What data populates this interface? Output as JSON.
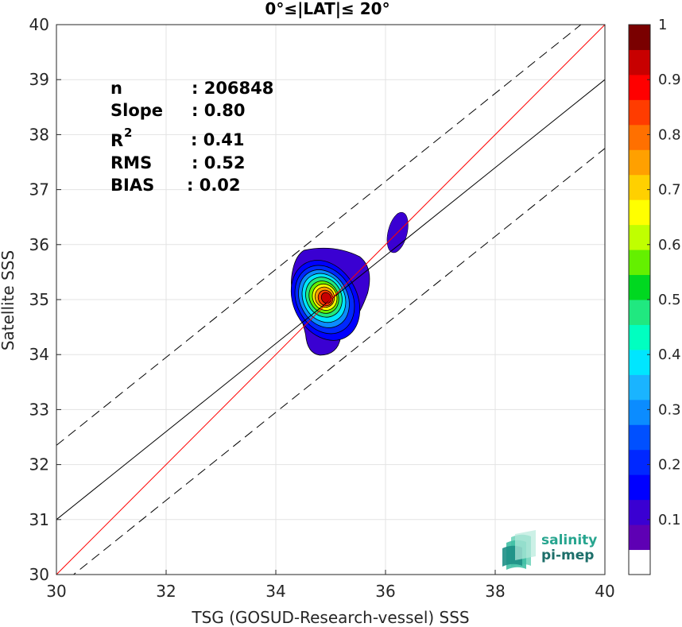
{
  "chart_data": {
    "type": "scatter",
    "title": "0°≤|LAT|≤ 20°",
    "xlabel": "TSG (GOSUD-Research-vessel) SSS",
    "ylabel": "Satellite SSS",
    "xlim": [
      30,
      40
    ],
    "ylim": [
      30,
      40
    ],
    "xticks": [
      "30",
      "32",
      "34",
      "36",
      "38",
      "40"
    ],
    "yticks": [
      "30",
      "31",
      "32",
      "33",
      "34",
      "35",
      "36",
      "37",
      "38",
      "39",
      "40"
    ],
    "grid": true,
    "stats": [
      {
        "label": "n",
        "value": ": 206848"
      },
      {
        "label": "Slope",
        "value": ": 0.80"
      },
      {
        "label": "R",
        "superscript": "2",
        "value": ": 0.41"
      },
      {
        "label": "RMS",
        "value": ": 0.52"
      },
      {
        "label": "BIAS",
        "value": ": 0.02"
      }
    ],
    "lines": {
      "identity": {
        "slope": 1.0,
        "intercept": 0.0,
        "color": "#ff0000"
      },
      "fit": {
        "slope": 0.8,
        "intercept": 7.0,
        "color": "#000000"
      },
      "upper_bound": {
        "slope": 0.8,
        "intercept": 8.35,
        "color": "#000000",
        "style": "dashed"
      },
      "lower_bound": {
        "slope": 0.8,
        "intercept": 5.75,
        "color": "#000000",
        "style": "dashed"
      }
    },
    "density_peak": {
      "x": 34.92,
      "y": 35.03
    },
    "secondary_blob": {
      "x": 36.22,
      "y": 36.22
    },
    "colorbar": {
      "min": 0,
      "max": 1,
      "step": 0.05,
      "ticks": [
        "0.1",
        "0.2",
        "0.3",
        "0.4",
        "0.5",
        "0.6",
        "0.7",
        "0.8",
        "0.9",
        "1"
      ],
      "colors": [
        "#ffffff",
        "#5e00b4",
        "#3a00d2",
        "#0000ff",
        "#0028ff",
        "#0050ff",
        "#0b8cff",
        "#1ab4ff",
        "#00e6ff",
        "#00ffc0",
        "#20e880",
        "#00d820",
        "#64f000",
        "#c0ff00",
        "#ffff00",
        "#ffd000",
        "#ffa000",
        "#ff7000",
        "#ff3c00",
        "#ff0000",
        "#c80000",
        "#7a0000"
      ]
    }
  },
  "logo": {
    "line1": "salinity",
    "line2": "pi-mep"
  }
}
